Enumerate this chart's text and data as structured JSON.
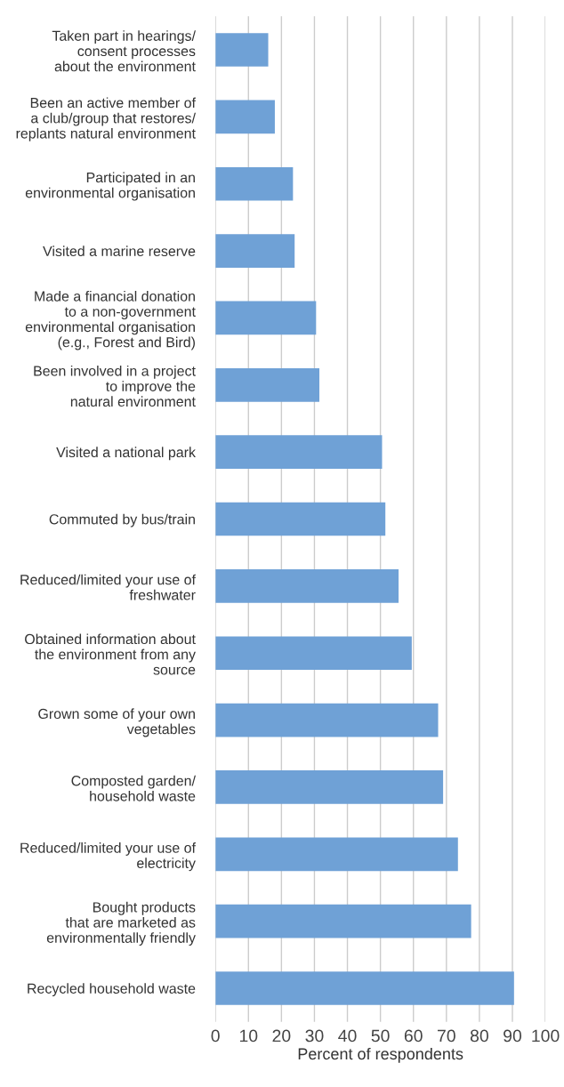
{
  "chart_data": {
    "type": "bar",
    "orientation": "horizontal",
    "xlabel": "Percent of respondents",
    "categories": [
      "Taken part in hearings/\nconsent processes\nabout the environment",
      "Been an active member of\na club/group that restores/\nreplants natural environment",
      "Participated in an\nenvironmental organisation",
      "Visited a marine reserve",
      "Made a financial donation\nto a non-government\nenvironmental organisation\n(e.g., Forest and Bird)",
      "Been involved in a project\nto improve the\nnatural environment",
      "Visited a national park",
      "Commuted by bus/train",
      "Reduced/limited your use of\nfreshwater",
      "Obtained information about\nthe environment from any\nsource",
      "Grown some of your own\nvegetables",
      "Composted garden/\nhousehold waste",
      "Reduced/limited your use of\nelectricity",
      "Bought products\nthat are marketed as\nenvironmentally friendly",
      "Recycled household waste"
    ],
    "values": [
      16,
      18,
      23.5,
      24,
      30.5,
      31.5,
      50.5,
      51.5,
      55.5,
      59.5,
      67.5,
      69,
      73.5,
      77.5,
      90.5
    ],
    "color": "#6fa1d6",
    "xlim": [
      0,
      100
    ],
    "xticks": [
      0,
      10,
      20,
      30,
      40,
      50,
      60,
      70,
      80,
      90,
      100
    ],
    "grid": "x"
  }
}
